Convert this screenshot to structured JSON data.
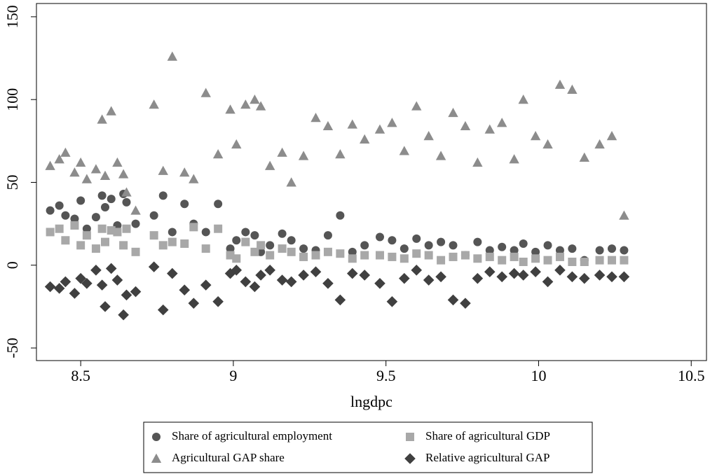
{
  "chart_data": {
    "type": "scatter",
    "x_label": "lngdpc",
    "x": [
      8.4,
      8.43,
      8.45,
      8.48,
      8.5,
      8.52,
      8.55,
      8.57,
      8.58,
      8.6,
      8.62,
      8.64,
      8.65,
      8.68,
      8.74,
      8.77,
      8.8,
      8.84,
      8.87,
      8.91,
      8.95,
      8.99,
      9.01,
      9.04,
      9.07,
      9.09,
      9.12,
      9.16,
      9.19,
      9.23,
      9.27,
      9.31,
      9.35,
      9.39,
      9.43,
      9.48,
      9.52,
      9.56,
      9.6,
      9.64,
      9.68,
      9.72,
      9.76,
      9.8,
      9.84,
      9.88,
      9.92,
      9.95,
      9.99,
      10.03,
      10.07,
      10.11,
      10.15,
      10.2,
      10.24,
      10.28
    ],
    "series": [
      {
        "name": "Share of agricultural employment",
        "color": "#555555",
        "marker": "circle",
        "values": [
          33,
          36,
          30,
          28,
          39,
          22,
          29,
          42,
          35,
          40,
          24,
          43,
          38,
          25,
          30,
          42,
          20,
          37,
          25,
          20,
          37,
          10,
          15,
          20,
          18,
          8,
          12,
          19,
          15,
          10,
          9,
          18,
          30,
          8,
          12,
          17,
          15,
          10,
          16,
          12,
          14,
          12,
          6,
          14,
          9,
          11,
          9,
          13,
          8,
          12,
          9,
          10,
          3,
          9,
          10,
          9
        ]
      },
      {
        "name": "Share of agricultural GDP",
        "color": "#a8a8a8",
        "marker": "square",
        "values": [
          20,
          22,
          15,
          24,
          12,
          18,
          10,
          22,
          14,
          21,
          20,
          12,
          22,
          8,
          18,
          12,
          14,
          13,
          23,
          10,
          22,
          6,
          4,
          14,
          8,
          12,
          6,
          10,
          8,
          5,
          6,
          8,
          7,
          4,
          6,
          6,
          5,
          4,
          7,
          6,
          3,
          5,
          6,
          4,
          5,
          3,
          5,
          2,
          4,
          3,
          5,
          2,
          2,
          3,
          3,
          3
        ]
      },
      {
        "name": "Agricultural GAP share",
        "color": "#8c8c8c",
        "marker": "triangle",
        "values": [
          60,
          64,
          68,
          56,
          62,
          52,
          58,
          88,
          54,
          93,
          62,
          55,
          44,
          33,
          97,
          57,
          126,
          56,
          52,
          104,
          67,
          94,
          73,
          97,
          100,
          96,
          60,
          68,
          50,
          66,
          89,
          84,
          67,
          85,
          76,
          82,
          86,
          69,
          96,
          78,
          66,
          92,
          84,
          62,
          82,
          86,
          64,
          100,
          78,
          73,
          109,
          106,
          65,
          73,
          78,
          30
        ]
      },
      {
        "name": "Relative agricultural GAP",
        "color": "#404040",
        "marker": "diamond",
        "values": [
          -13,
          -14,
          -10,
          -17,
          -8,
          -11,
          -3,
          -12,
          -25,
          -2,
          -9,
          -30,
          -18,
          -16,
          -1,
          -27,
          -5,
          -15,
          -23,
          -12,
          -22,
          -5,
          -3,
          -10,
          -13,
          -6,
          -3,
          -9,
          -10,
          -6,
          -4,
          -11,
          -21,
          -5,
          -6,
          -11,
          -22,
          -8,
          -3,
          -9,
          -7,
          -21,
          -23,
          -8,
          -4,
          -7,
          -5,
          -6,
          -4,
          -10,
          -3,
          -7,
          -8,
          -6,
          -7,
          -7
        ]
      }
    ],
    "xlim": [
      8.355,
      10.55
    ],
    "xticks": [
      8.5,
      9,
      9.5,
      10,
      10.5
    ],
    "ylim": [
      -57.6,
      158
    ],
    "yticks": [
      -50,
      0,
      50,
      100,
      150
    ],
    "legend": "bottom"
  }
}
